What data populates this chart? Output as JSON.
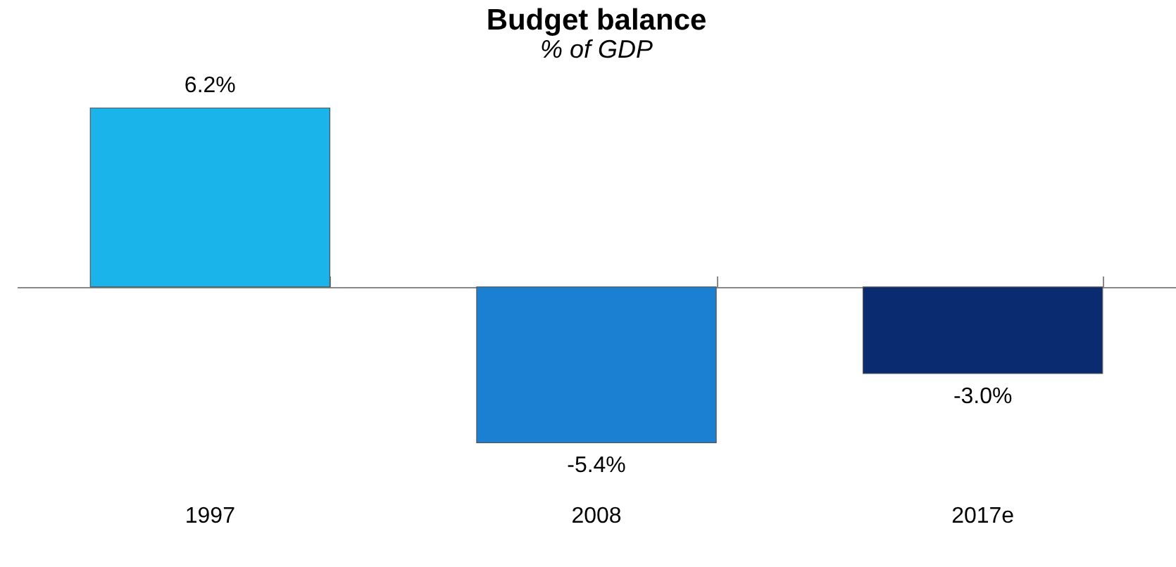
{
  "chart_data": {
    "type": "bar",
    "title": "Budget balance",
    "subtitle": "% of GDP",
    "categories": [
      "1997",
      "2008",
      "2017e"
    ],
    "values": [
      6.2,
      -5.4,
      -3.0
    ],
    "colors": [
      "#1ab4ea",
      "#1b80d2",
      "#0b2b70"
    ],
    "value_labels": [
      "6.2%",
      "-5.4%",
      "-3.0%"
    ],
    "grid": false,
    "legend": false
  }
}
